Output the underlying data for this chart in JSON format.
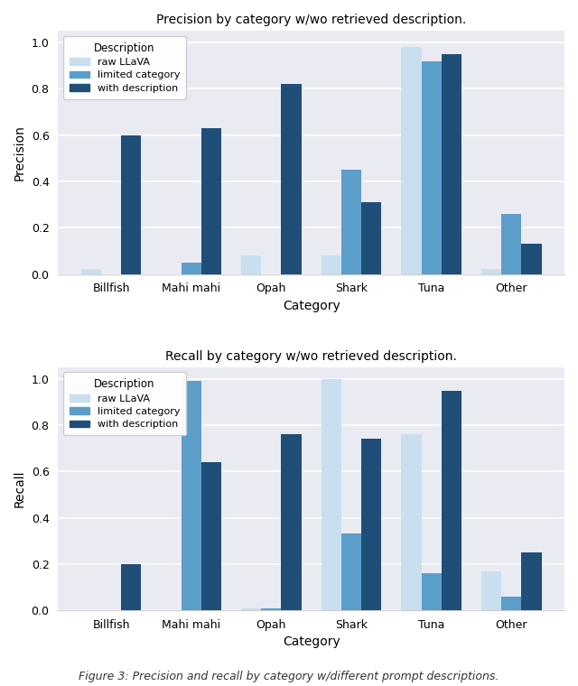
{
  "categories": [
    "Billfish",
    "Mahi mahi",
    "Opah",
    "Shark",
    "Tuna",
    "Other"
  ],
  "precision": {
    "raw_llava": [
      0.02,
      0.0,
      0.08,
      0.08,
      0.98,
      0.02
    ],
    "limited_category": [
      0.0,
      0.05,
      0.0,
      0.45,
      0.92,
      0.26
    ],
    "with_description": [
      0.6,
      0.63,
      0.82,
      0.31,
      0.95,
      0.13
    ]
  },
  "recall": {
    "raw_llava": [
      0.0,
      0.0,
      0.01,
      1.0,
      0.76,
      0.17
    ],
    "limited_category": [
      0.0,
      0.99,
      0.01,
      0.33,
      0.16,
      0.06
    ],
    "with_description": [
      0.2,
      0.64,
      0.76,
      0.74,
      0.95,
      0.25
    ]
  },
  "colors": {
    "raw_llava": "#c9dff0",
    "limited_category": "#5b9ec9",
    "with_description": "#1f4f78"
  },
  "legend_title": "Description",
  "legend_labels": [
    "raw LLaVA",
    "limited category",
    "with description"
  ],
  "precision_title": "Precision by category w/wo retrieved description.",
  "recall_title": "Recall by category w/wo retrieved description.",
  "xlabel": "Category",
  "precision_ylabel": "Precision",
  "recall_ylabel": "Recall",
  "figure_caption": "Figure 3: Precision and recall by category w/different prompt descriptions.",
  "bar_width": 0.25,
  "figsize": [
    6.4,
    7.6
  ],
  "dpi": 100,
  "axes_facecolor": "#eaeaf2",
  "grid_color": "white",
  "fig_facecolor": "white"
}
